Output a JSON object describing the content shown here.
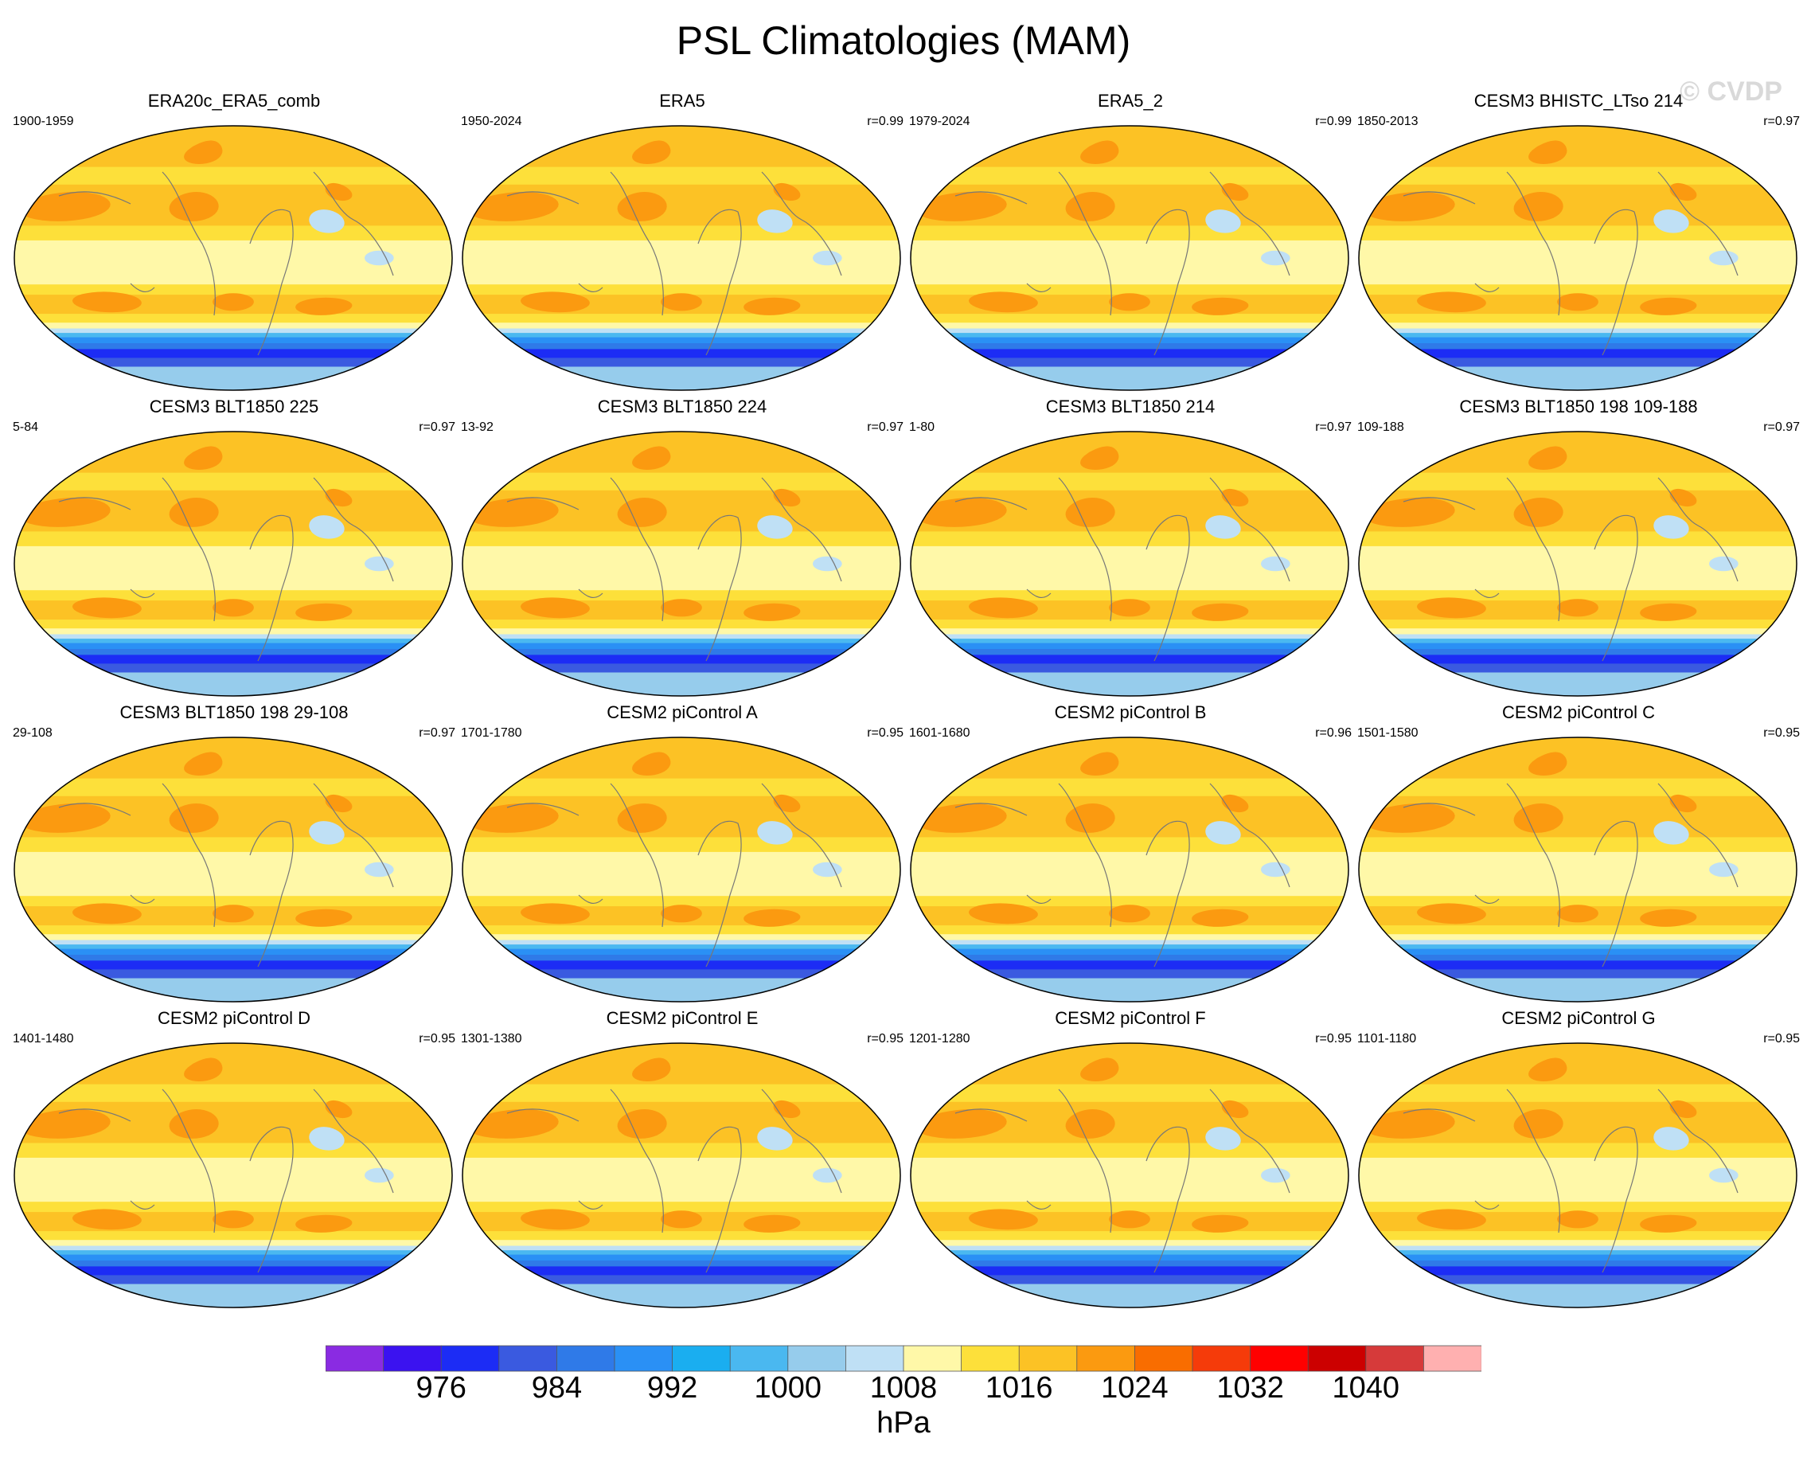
{
  "title": "PSL Climatologies (MAM)",
  "watermark": "© CVDP",
  "panels": [
    {
      "title": "ERA20c_ERA5_comb",
      "years": "1900-1959",
      "r": ""
    },
    {
      "title": "ERA5",
      "years": "1950-2024",
      "r": "r=0.99"
    },
    {
      "title": "ERA5_2",
      "years": "1979-2024",
      "r": "r=0.99"
    },
    {
      "title": "CESM3 BHISTC_LTso 214",
      "years": "1850-2013",
      "r": "r=0.97"
    },
    {
      "title": "CESM3 BLT1850 225",
      "years": "5-84",
      "r": "r=0.97"
    },
    {
      "title": "CESM3 BLT1850 224",
      "years": "13-92",
      "r": "r=0.97"
    },
    {
      "title": "CESM3 BLT1850 214",
      "years": "1-80",
      "r": "r=0.97"
    },
    {
      "title": "CESM3 BLT1850 198 109-188",
      "years": "109-188",
      "r": "r=0.97"
    },
    {
      "title": "CESM3 BLT1850 198 29-108",
      "years": "29-108",
      "r": "r=0.97"
    },
    {
      "title": "CESM2 piControl A",
      "years": "1701-1780",
      "r": "r=0.95"
    },
    {
      "title": "CESM2 piControl B",
      "years": "1601-1680",
      "r": "r=0.96"
    },
    {
      "title": "CESM2 piControl C",
      "years": "1501-1580",
      "r": "r=0.95"
    },
    {
      "title": "CESM2 piControl D",
      "years": "1401-1480",
      "r": "r=0.95"
    },
    {
      "title": "CESM2 piControl E",
      "years": "1301-1380",
      "r": "r=0.95"
    },
    {
      "title": "CESM2 piControl F",
      "years": "1201-1280",
      "r": "r=0.95"
    },
    {
      "title": "CESM2 piControl G",
      "years": "1101-1180",
      "r": "r=0.95"
    }
  ],
  "colorbar": {
    "colors": [
      "#8a2be2",
      "#3b12f0",
      "#1c2cf5",
      "#3a5ae0",
      "#2f7ae8",
      "#2a90f5",
      "#1aaef0",
      "#4ab8f0",
      "#96ccec",
      "#bfe0f5",
      "#fff8a8",
      "#fde03a",
      "#fcc225",
      "#fb9a10",
      "#f96d00",
      "#f53b0a",
      "#ff0000",
      "#cc0000",
      "#d63a3a",
      "#ffb0b0"
    ],
    "labels": [
      "976",
      "984",
      "992",
      "1000",
      "1008",
      "1016",
      "1024",
      "1032",
      "1040"
    ],
    "units": "hPa"
  },
  "bands": [
    {
      "lat": 90,
      "c": "#fcc225"
    },
    {
      "lat": 62,
      "c": "#fde03a"
    },
    {
      "lat": 50,
      "c": "#fcc225"
    },
    {
      "lat": 22,
      "c": "#fde03a"
    },
    {
      "lat": 12,
      "c": "#fff8a8"
    },
    {
      "lat": -18,
      "c": "#fde03a"
    },
    {
      "lat": -25,
      "c": "#fcc225"
    },
    {
      "lat": -38,
      "c": "#fde03a"
    },
    {
      "lat": -44,
      "c": "#fff8a8"
    },
    {
      "lat": -48,
      "c": "#bfe0f5"
    },
    {
      "lat": -51,
      "c": "#4ab8f0"
    },
    {
      "lat": -54,
      "c": "#2a90f5"
    },
    {
      "lat": -58,
      "c": "#2f7ae8"
    },
    {
      "lat": -62,
      "c": "#1c2cf5"
    },
    {
      "lat": -68,
      "c": "#3a5ae0"
    },
    {
      "lat": -74,
      "c": "#96ccec"
    }
  ],
  "blobs": [
    {
      "lon": -150,
      "lat": 35,
      "rlon": 40,
      "rlat": 10,
      "c": "#fb9a10"
    },
    {
      "lon": -35,
      "lat": 35,
      "rlon": 22,
      "rlat": 10,
      "c": "#fb9a10"
    },
    {
      "lon": -110,
      "lat": -30,
      "rlon": 30,
      "rlat": 7,
      "c": "#fb9a10"
    },
    {
      "lon": 0,
      "lat": -30,
      "rlon": 18,
      "rlat": 6,
      "c": "#fb9a10"
    },
    {
      "lon": 80,
      "lat": -33,
      "rlon": 25,
      "rlat": 6,
      "c": "#fb9a10"
    },
    {
      "lon": 80,
      "lat": 25,
      "rlon": 15,
      "rlat": 8,
      "c": "#bfe0f5"
    },
    {
      "lon": 120,
      "lat": 0,
      "rlon": 12,
      "rlat": 5,
      "c": "#bfe0f5"
    },
    {
      "lon": 100,
      "lat": 45,
      "rlon": 12,
      "rlat": 6,
      "c": "#fb9a10"
    },
    {
      "lon": -40,
      "lat": 72,
      "rlon": 25,
      "rlat": 8,
      "c": "#fb9a10"
    }
  ]
}
